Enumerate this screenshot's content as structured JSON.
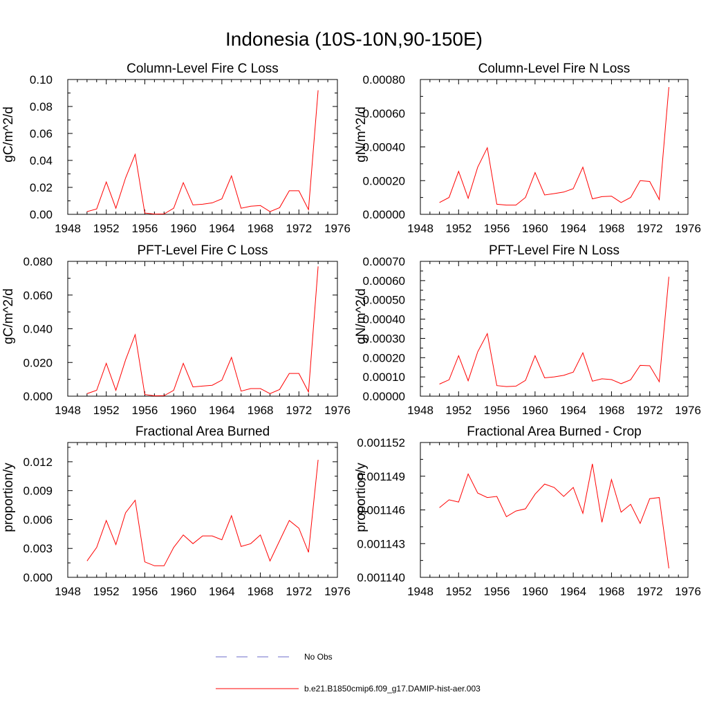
{
  "main_title": "Indonesia (10S-10N,90-150E)",
  "colors": {
    "model": "#ff0000",
    "obs": "#6b6bc8"
  },
  "legend": {
    "obs_label": "No Obs",
    "model_label": "b.e21.B1850cmip6.f09_g17.DAMIP-hist-aer.003"
  },
  "chart_data": [
    {
      "type": "line",
      "title": "Column-Level Fire C Loss",
      "ylabel": "gC/m^2/d",
      "xlim": [
        1948,
        1976
      ],
      "xticks": [
        1948,
        1952,
        1956,
        1960,
        1964,
        1968,
        1972,
        1976
      ],
      "xtick_labels": [
        "1948",
        "1952",
        "1956",
        "1960",
        "1964",
        "1968",
        "1972",
        "1976"
      ],
      "ylim": [
        0,
        0.1
      ],
      "yticks": [
        0,
        0.02,
        0.04,
        0.06,
        0.08,
        0.1
      ],
      "ytick_labels": [
        "0.00",
        "0.02",
        "0.04",
        "0.06",
        "0.08",
        "0.10"
      ],
      "x": [
        1950,
        1951,
        1952,
        1953,
        1954,
        1955,
        1956,
        1957,
        1958,
        1959,
        1960,
        1961,
        1962,
        1963,
        1964,
        1965,
        1966,
        1967,
        1968,
        1969,
        1970,
        1971,
        1972,
        1973,
        1974
      ],
      "series": [
        {
          "values": [
            0.002,
            0.004,
            0.024,
            0.0045,
            0.027,
            0.0445,
            0.001,
            0.0002,
            0.0003,
            0.0045,
            0.0235,
            0.007,
            0.0075,
            0.0085,
            0.0115,
            0.0285,
            0.0045,
            0.006,
            0.0065,
            0.002,
            0.005,
            0.0175,
            0.0175,
            0.0035,
            0.092
          ]
        }
      ]
    },
    {
      "type": "line",
      "title": "Column-Level Fire N Loss",
      "ylabel": "gN/m^2/d",
      "xlim": [
        1948,
        1976
      ],
      "xticks": [
        1948,
        1952,
        1956,
        1960,
        1964,
        1968,
        1972,
        1976
      ],
      "xtick_labels": [
        "1948",
        "1952",
        "1956",
        "1960",
        "1964",
        "1968",
        "1972",
        "1976"
      ],
      "ylim": [
        0,
        0.0008
      ],
      "yticks": [
        0,
        0.0002,
        0.0004,
        0.0006,
        0.0008
      ],
      "ytick_labels": [
        "0.00000",
        "0.00020",
        "0.00040",
        "0.00060",
        "0.00080"
      ],
      "x": [
        1950,
        1951,
        1952,
        1953,
        1954,
        1955,
        1956,
        1957,
        1958,
        1959,
        1960,
        1961,
        1962,
        1963,
        1964,
        1965,
        1966,
        1967,
        1968,
        1969,
        1970,
        1971,
        1972,
        1973,
        1974
      ],
      "series": [
        {
          "values": [
            7e-05,
            0.0001,
            0.000255,
            9.5e-05,
            0.00028,
            0.000395,
            6e-05,
            5.5e-05,
            5.5e-05,
            0.0001,
            0.000248,
            0.000115,
            0.000123,
            0.000132,
            0.000152,
            0.00028,
            9.2e-05,
            0.000105,
            0.000108,
            7e-05,
            0.0001,
            0.0002,
            0.000195,
            8.8e-05,
            0.000755
          ]
        }
      ]
    },
    {
      "type": "line",
      "title": "PFT-Level Fire C Loss",
      "ylabel": "gC/m^2/d",
      "xlim": [
        1948,
        1976
      ],
      "xticks": [
        1948,
        1952,
        1956,
        1960,
        1964,
        1968,
        1972,
        1976
      ],
      "xtick_labels": [
        "1948",
        "1952",
        "1956",
        "1960",
        "1964",
        "1968",
        "1972",
        "1976"
      ],
      "ylim": [
        0,
        0.08
      ],
      "yticks": [
        0,
        0.02,
        0.04,
        0.06,
        0.08
      ],
      "ytick_labels": [
        "0.000",
        "0.020",
        "0.040",
        "0.060",
        "0.080"
      ],
      "x": [
        1950,
        1951,
        1952,
        1953,
        1954,
        1955,
        1956,
        1957,
        1958,
        1959,
        1960,
        1961,
        1962,
        1963,
        1964,
        1965,
        1966,
        1967,
        1968,
        1969,
        1970,
        1971,
        1972,
        1973,
        1974
      ],
      "series": [
        {
          "values": [
            0.0015,
            0.0035,
            0.0195,
            0.0035,
            0.0215,
            0.0365,
            0.001,
            0.0002,
            0.0003,
            0.0035,
            0.0195,
            0.0055,
            0.006,
            0.0065,
            0.0095,
            0.023,
            0.003,
            0.0045,
            0.0045,
            0.0015,
            0.004,
            0.0135,
            0.0135,
            0.0025,
            0.077
          ]
        }
      ]
    },
    {
      "type": "line",
      "title": "PFT-Level Fire N Loss",
      "ylabel": "gN/m^2/d",
      "xlim": [
        1948,
        1976
      ],
      "xticks": [
        1948,
        1952,
        1956,
        1960,
        1964,
        1968,
        1972,
        1976
      ],
      "xtick_labels": [
        "1948",
        "1952",
        "1956",
        "1960",
        "1964",
        "1968",
        "1972",
        "1976"
      ],
      "ylim": [
        0,
        0.0007
      ],
      "yticks": [
        0,
        0.0001,
        0.0002,
        0.0003,
        0.0004,
        0.0005,
        0.0006,
        0.0007
      ],
      "ytick_labels": [
        "0.00000",
        "0.00010",
        "0.00020",
        "0.00030",
        "0.00040",
        "0.00050",
        "0.00060",
        "0.00070"
      ],
      "x": [
        1950,
        1951,
        1952,
        1953,
        1954,
        1955,
        1956,
        1957,
        1958,
        1959,
        1960,
        1961,
        1962,
        1963,
        1964,
        1965,
        1966,
        1967,
        1968,
        1969,
        1970,
        1971,
        1972,
        1973,
        1974
      ],
      "series": [
        {
          "values": [
            6.3e-05,
            8.5e-05,
            0.00021,
            8e-05,
            0.00023,
            0.000325,
            5.5e-05,
            5e-05,
            5.2e-05,
            8.2e-05,
            0.00021,
            9.5e-05,
            0.0001,
            0.000108,
            0.000125,
            0.000225,
            7.8e-05,
            9e-05,
            8.6e-05,
            6.5e-05,
            8.5e-05,
            0.00016,
            0.000158,
            7.5e-05,
            0.00062
          ]
        }
      ]
    },
    {
      "type": "line",
      "title": "Fractional Area Burned",
      "ylabel": "proportion/y",
      "xlim": [
        1948,
        1976
      ],
      "xticks": [
        1948,
        1952,
        1956,
        1960,
        1964,
        1968,
        1972,
        1976
      ],
      "xtick_labels": [
        "1948",
        "1952",
        "1956",
        "1960",
        "1964",
        "1968",
        "1972",
        "1976"
      ],
      "ylim": [
        0,
        0.014
      ],
      "yticks": [
        0,
        0.003,
        0.006,
        0.009,
        0.012
      ],
      "ytick_labels": [
        "0.000",
        "0.003",
        "0.006",
        "0.009",
        "0.012"
      ],
      "x": [
        1950,
        1951,
        1952,
        1953,
        1954,
        1955,
        1956,
        1957,
        1958,
        1959,
        1960,
        1961,
        1962,
        1963,
        1964,
        1965,
        1966,
        1967,
        1968,
        1969,
        1970,
        1971,
        1972,
        1973,
        1974
      ],
      "series": [
        {
          "values": [
            0.0017,
            0.0031,
            0.0059,
            0.0034,
            0.0067,
            0.008,
            0.0016,
            0.0012,
            0.0012,
            0.0031,
            0.0044,
            0.0035,
            0.0043,
            0.0043,
            0.0039,
            0.0064,
            0.0032,
            0.0035,
            0.0044,
            0.0017,
            0.0038,
            0.0059,
            0.0051,
            0.0026,
            0.0122
          ]
        }
      ]
    },
    {
      "type": "line",
      "title": "Fractional Area Burned - Crop",
      "ylabel": "proportion/y",
      "xlim": [
        1948,
        1976
      ],
      "xticks": [
        1948,
        1952,
        1956,
        1960,
        1964,
        1968,
        1972,
        1976
      ],
      "xtick_labels": [
        "1948",
        "1952",
        "1956",
        "1960",
        "1964",
        "1968",
        "1972",
        "1976"
      ],
      "ylim": [
        0.00114,
        0.001152
      ],
      "yticks": [
        0.00114,
        0.001143,
        0.001146,
        0.001149,
        0.001152
      ],
      "ytick_labels": [
        "0.001140",
        "0.001143",
        "0.001146",
        "0.001149",
        "0.001152"
      ],
      "x": [
        1950,
        1951,
        1952,
        1953,
        1954,
        1955,
        1956,
        1957,
        1958,
        1959,
        1960,
        1961,
        1962,
        1963,
        1964,
        1965,
        1966,
        1967,
        1968,
        1969,
        1970,
        1971,
        1972,
        1973,
        1974
      ],
      "series": [
        {
          "values": [
            0.0011462,
            0.0011469,
            0.0011467,
            0.0011492,
            0.0011475,
            0.0011471,
            0.0011472,
            0.0011454,
            0.0011459,
            0.0011461,
            0.0011474,
            0.0011483,
            0.001148,
            0.0011472,
            0.001148,
            0.0011457,
            0.0011501,
            0.0011449,
            0.0011487,
            0.0011458,
            0.0011465,
            0.0011448,
            0.001147,
            0.0011471,
            0.0011408
          ]
        }
      ]
    }
  ]
}
